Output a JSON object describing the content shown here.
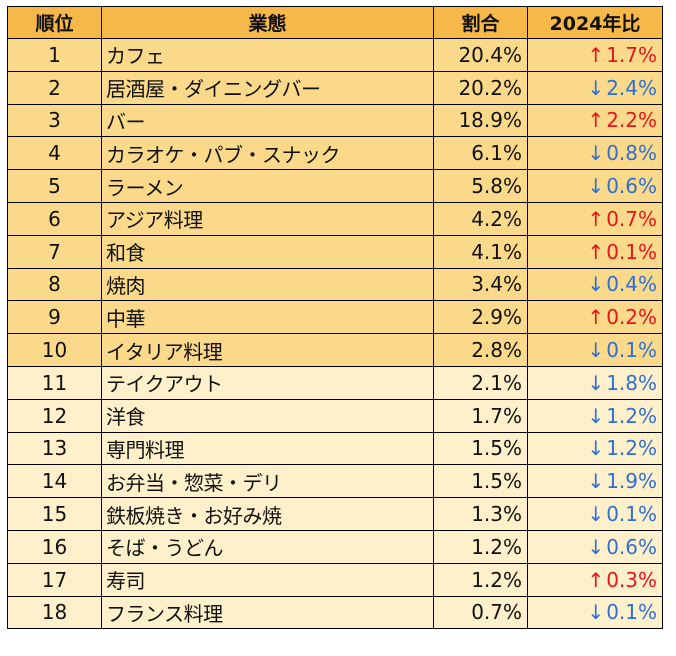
{
  "table": {
    "headers": {
      "rank": "順位",
      "category": "業態",
      "share": "割合",
      "change": "2024年比"
    },
    "rows": [
      {
        "rank": "1",
        "category": "カフェ",
        "share": "20.4%",
        "direction": "up",
        "arrow": "↑",
        "change": "1.7%"
      },
      {
        "rank": "2",
        "category": "居酒屋・ダイニングバー",
        "share": "20.2%",
        "direction": "down",
        "arrow": "↓",
        "change": "2.4%"
      },
      {
        "rank": "3",
        "category": "バー",
        "share": "18.9%",
        "direction": "up",
        "arrow": "↑",
        "change": "2.2%"
      },
      {
        "rank": "4",
        "category": "カラオケ・パブ・スナック",
        "share": "6.1%",
        "direction": "down",
        "arrow": "↓",
        "change": "0.8%"
      },
      {
        "rank": "5",
        "category": "ラーメン",
        "share": "5.8%",
        "direction": "down",
        "arrow": "↓",
        "change": "0.6%"
      },
      {
        "rank": "6",
        "category": "アジア料理",
        "share": "4.2%",
        "direction": "up",
        "arrow": "↑",
        "change": "0.7%"
      },
      {
        "rank": "7",
        "category": "和食",
        "share": "4.1%",
        "direction": "up",
        "arrow": "↑",
        "change": "0.1%"
      },
      {
        "rank": "8",
        "category": "焼肉",
        "share": "3.4%",
        "direction": "down",
        "arrow": "↓",
        "change": "0.4%"
      },
      {
        "rank": "9",
        "category": "中華",
        "share": "2.9%",
        "direction": "up",
        "arrow": "↑",
        "change": "0.2%"
      },
      {
        "rank": "10",
        "category": "イタリア料理",
        "share": "2.8%",
        "direction": "down",
        "arrow": "↓",
        "change": "0.1%"
      },
      {
        "rank": "11",
        "category": "テイクアウト",
        "share": "2.1%",
        "direction": "down",
        "arrow": "↓",
        "change": "1.8%"
      },
      {
        "rank": "12",
        "category": "洋食",
        "share": "1.7%",
        "direction": "down",
        "arrow": "↓",
        "change": "1.2%"
      },
      {
        "rank": "13",
        "category": "専門料理",
        "share": "1.5%",
        "direction": "down",
        "arrow": "↓",
        "change": "1.2%"
      },
      {
        "rank": "14",
        "category": "お弁当・惣菜・デリ",
        "share": "1.5%",
        "direction": "down",
        "arrow": "↓",
        "change": "1.9%"
      },
      {
        "rank": "15",
        "category": "鉄板焼き・お好み焼",
        "share": "1.3%",
        "direction": "down",
        "arrow": "↓",
        "change": "0.1%"
      },
      {
        "rank": "16",
        "category": "そば・うどん",
        "share": "1.2%",
        "direction": "down",
        "arrow": "↓",
        "change": "0.6%"
      },
      {
        "rank": "17",
        "category": "寿司",
        "share": "1.2%",
        "direction": "up",
        "arrow": "↑",
        "change": "0.3%"
      },
      {
        "rank": "18",
        "category": "フランス料理",
        "share": "0.7%",
        "direction": "down",
        "arrow": "↓",
        "change": "0.1%"
      }
    ]
  },
  "colors": {
    "header_bg": "#f7b84a",
    "top_rows_bg": "#fbd98a",
    "rest_rows_bg": "#fff0cc",
    "up": "#e8141b",
    "down": "#2f6fd1",
    "border": "#000000"
  }
}
